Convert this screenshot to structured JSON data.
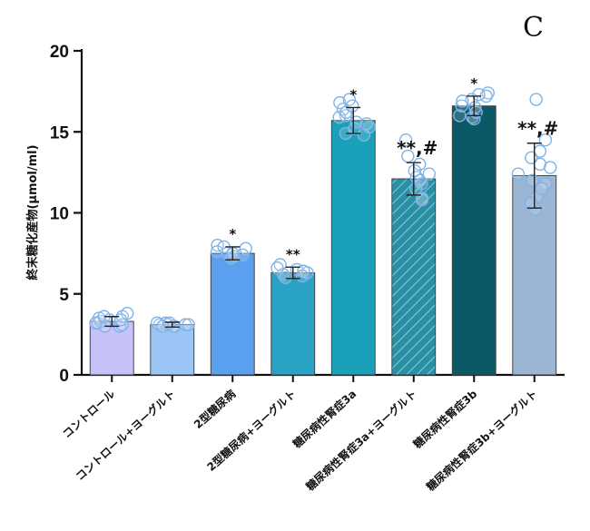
{
  "chart_data": {
    "type": "bar",
    "panel_letter": "C",
    "title": "",
    "xlabel": "",
    "ylabel": "終末糖化産物(μmol/ml)",
    "ylim": [
      0,
      20
    ],
    "yticks": [
      0,
      5,
      10,
      15,
      20
    ],
    "ytick_labels": [
      "0",
      "5",
      "10",
      "15",
      "20"
    ],
    "categories": [
      "コントロール",
      "コントロール+ヨーグルト",
      "2型糖尿病",
      "2型糖尿病+ヨーグルト",
      "糖尿病性腎症3a",
      "糖尿病性腎症3a+ヨーグルト",
      "糖尿病性腎症3b",
      "糖尿病性腎症3b+ヨーグルト"
    ],
    "values": [
      3.3,
      3.1,
      7.5,
      6.3,
      15.7,
      12.1,
      16.6,
      12.3
    ],
    "errors": [
      0.3,
      0.15,
      0.4,
      0.35,
      0.8,
      1.0,
      0.6,
      2.0
    ],
    "significance": [
      "",
      "",
      "*",
      "**",
      "*",
      "**,#",
      "*",
      "**,#"
    ],
    "bar_colors": [
      "#c7c2f8",
      "#9cc4f5",
      "#5aa0ef",
      "#2aa2c4",
      "#1aa0b8",
      "#2b8fa4",
      "#0b5866",
      "#9bb5d4"
    ],
    "hatched": [
      false,
      false,
      false,
      false,
      false,
      true,
      false,
      false
    ],
    "points": [
      [
        3.0,
        3.2,
        3.4,
        3.6,
        3.3,
        3.1,
        3.5,
        3.8,
        3.0,
        3.4,
        3.2,
        3.6
      ],
      [
        3.0,
        3.1,
        3.2,
        3.0,
        3.1,
        3.2,
        3.1,
        3.0,
        3.2,
        3.1
      ],
      [
        7.2,
        7.5,
        7.8,
        8.0,
        7.4,
        7.6,
        7.3,
        7.9,
        7.5
      ],
      [
        6.0,
        6.3,
        6.5,
        6.8,
        6.2,
        6.4,
        6.1,
        6.6
      ],
      [
        14.8,
        15.2,
        15.5,
        16.0,
        16.4,
        16.8,
        17.0,
        15.9,
        15.6,
        14.9,
        15.3,
        16.2,
        16.6
      ],
      [
        10.8,
        11.5,
        12.0,
        12.4,
        13.0,
        14.5,
        11.8,
        12.2,
        13.5,
        10.9,
        12.6
      ],
      [
        15.8,
        16.2,
        16.6,
        17.0,
        17.4,
        16.9,
        16.0,
        17.2,
        16.5,
        15.9,
        17.3
      ],
      [
        10.2,
        11.0,
        11.8,
        12.4,
        13.0,
        13.8,
        14.5,
        17.0,
        10.6,
        11.5,
        12.8,
        13.4,
        12.0
      ]
    ]
  }
}
